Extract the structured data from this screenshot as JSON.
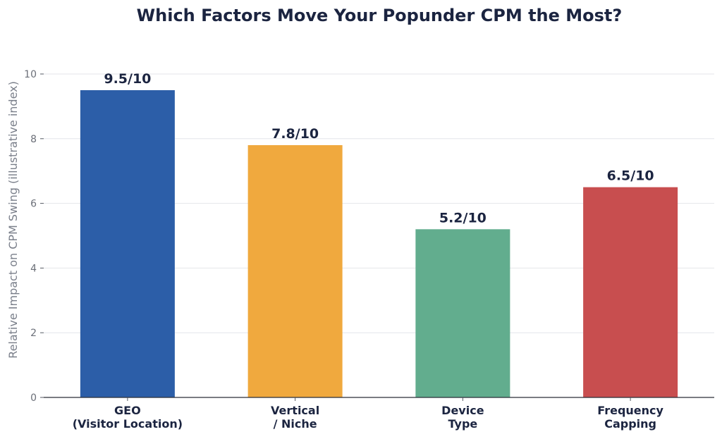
{
  "chart_data": {
    "type": "bar",
    "title": "Which Factors Move Your Popunder CPM the Most?",
    "ylabel": "Relative Impact on CPM Swing (illustrative index)",
    "xlabel": "",
    "categories": [
      [
        "GEO",
        "(Visitor Location)"
      ],
      [
        "Vertical",
        "/ Niche"
      ],
      [
        "Device",
        "Type"
      ],
      [
        "Frequency",
        "Capping"
      ]
    ],
    "values": [
      9.5,
      7.8,
      5.2,
      6.5
    ],
    "data_labels": [
      "9.5/10",
      "7.8/10",
      "5.2/10",
      "6.5/10"
    ],
    "colors": [
      "#2c5ea8",
      "#f0a93e",
      "#62ad8e",
      "#c84e4f"
    ],
    "ylim": [
      0,
      10
    ],
    "yticks": [
      0,
      2,
      4,
      6,
      8,
      10
    ],
    "grid": true,
    "legend": "none"
  }
}
